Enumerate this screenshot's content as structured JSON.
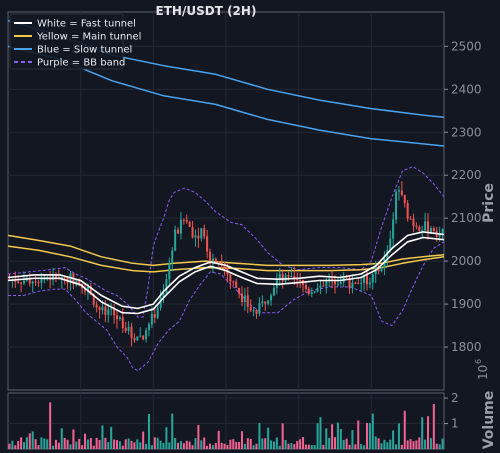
{
  "chart_data": {
    "type": "candlestick",
    "title": "ETH/USDT (2H)",
    "price_axis": {
      "label": "Price",
      "ylim": [
        1700,
        2580
      ],
      "ticks": [
        1800,
        1900,
        2000,
        2100,
        2200,
        2300,
        2400,
        2500
      ],
      "side": "right"
    },
    "volume_axis": {
      "label": "Volume",
      "exponent_label": "10",
      "exponent": "6",
      "ylim": [
        0,
        2.2
      ],
      "ticks": [
        1,
        2
      ],
      "side": "right"
    },
    "x_range": [
      0,
      84
    ],
    "grid": true,
    "legend": {
      "placement": "top-left",
      "entries": [
        {
          "label": "White = Fast tunnel",
          "color": "#ffffff",
          "style": "solid"
        },
        {
          "label": "Yellow = Main tunnel",
          "color": "#f2c94c",
          "style": "solid"
        },
        {
          "label": "Blue = Slow tunnel",
          "color": "#4aa3f0",
          "style": "solid"
        },
        {
          "label": "Purple = BB band",
          "color": "#8a5cf5",
          "style": "dashed"
        }
      ]
    },
    "colors": {
      "up": "#26a69a",
      "down": "#ef5350",
      "volume_up": "#26a69a",
      "volume_down": "#f06292",
      "fast": "#ffffff",
      "main": "#f2c94c",
      "slow": "#4aa3f0",
      "bb": "#8a5cf5"
    },
    "price_anchors": [
      [
        0,
        1958
      ],
      [
        2,
        1958
      ],
      [
        4,
        1955
      ],
      [
        6,
        1960
      ],
      [
        8,
        1962
      ],
      [
        10,
        1965
      ],
      [
        12,
        1962
      ],
      [
        14,
        1950
      ],
      [
        16,
        1928
      ],
      [
        17,
        1895
      ],
      [
        18,
        1885
      ],
      [
        19,
        1872
      ],
      [
        20,
        1878
      ],
      [
        22,
        1860
      ],
      [
        23,
        1840
      ],
      [
        24,
        1822
      ],
      [
        25,
        1830
      ],
      [
        26,
        1820
      ],
      [
        27,
        1850
      ],
      [
        28,
        1870
      ],
      [
        29,
        1900
      ],
      [
        30,
        1920
      ],
      [
        31,
        1990
      ],
      [
        32,
        2060
      ],
      [
        33,
        2075
      ],
      [
        34,
        2100
      ],
      [
        35,
        2080
      ],
      [
        36,
        2060
      ],
      [
        37,
        2070
      ],
      [
        38,
        2050
      ],
      [
        39,
        2000
      ],
      [
        40,
        2010
      ],
      [
        41,
        1995
      ],
      [
        42,
        1980
      ],
      [
        43,
        1950
      ],
      [
        44,
        1940
      ],
      [
        45,
        1920
      ],
      [
        46,
        1900
      ],
      [
        47,
        1885
      ],
      [
        48,
        1880
      ],
      [
        49,
        1900
      ],
      [
        50,
        1920
      ],
      [
        52,
        1960
      ],
      [
        54,
        1955
      ],
      [
        56,
        1950
      ],
      [
        57,
        1940
      ],
      [
        58,
        1930
      ],
      [
        60,
        1945
      ],
      [
        62,
        1955
      ],
      [
        64,
        1960
      ],
      [
        66,
        1950
      ],
      [
        67,
        1955
      ],
      [
        68,
        1952
      ],
      [
        70,
        1960
      ],
      [
        72,
        1990
      ],
      [
        73,
        2010
      ],
      [
        74,
        2090
      ],
      [
        75,
        2180
      ],
      [
        76,
        2140
      ],
      [
        77,
        2110
      ],
      [
        78,
        2090
      ],
      [
        80,
        2080
      ],
      [
        82,
        2075
      ],
      [
        84,
        2060
      ]
    ],
    "fast_tunnel": {
      "upper": [
        [
          0,
          1962
        ],
        [
          5,
          1968
        ],
        [
          10,
          1968
        ],
        [
          14,
          1955
        ],
        [
          18,
          1920
        ],
        [
          22,
          1895
        ],
        [
          25,
          1890
        ],
        [
          28,
          1900
        ],
        [
          30,
          1930
        ],
        [
          33,
          1965
        ],
        [
          36,
          1985
        ],
        [
          39,
          1998
        ],
        [
          42,
          1990
        ],
        [
          45,
          1975
        ],
        [
          48,
          1960
        ],
        [
          52,
          1958
        ],
        [
          56,
          1960
        ],
        [
          60,
          1965
        ],
        [
          64,
          1962
        ],
        [
          68,
          1970
        ],
        [
          71,
          1990
        ],
        [
          74,
          2030
        ],
        [
          77,
          2060
        ],
        [
          80,
          2068
        ],
        [
          84,
          2062
        ]
      ],
      "lower": [
        [
          0,
          1955
        ],
        [
          5,
          1960
        ],
        [
          10,
          1960
        ],
        [
          14,
          1945
        ],
        [
          18,
          1905
        ],
        [
          22,
          1880
        ],
        [
          25,
          1878
        ],
        [
          28,
          1888
        ],
        [
          30,
          1915
        ],
        [
          33,
          1952
        ],
        [
          36,
          1975
        ],
        [
          39,
          1988
        ],
        [
          42,
          1978
        ],
        [
          45,
          1962
        ],
        [
          48,
          1948
        ],
        [
          52,
          1946
        ],
        [
          56,
          1950
        ],
        [
          60,
          1955
        ],
        [
          64,
          1955
        ],
        [
          68,
          1962
        ],
        [
          71,
          1980
        ],
        [
          74,
          2015
        ],
        [
          77,
          2045
        ],
        [
          80,
          2055
        ],
        [
          84,
          2050
        ]
      ]
    },
    "main_tunnel": {
      "upper": [
        [
          0,
          2060
        ],
        [
          6,
          2048
        ],
        [
          12,
          2035
        ],
        [
          18,
          2010
        ],
        [
          24,
          1995
        ],
        [
          28,
          1990
        ],
        [
          32,
          1995
        ],
        [
          38,
          2000
        ],
        [
          44,
          1995
        ],
        [
          50,
          1990
        ],
        [
          56,
          1990
        ],
        [
          62,
          1990
        ],
        [
          68,
          1992
        ],
        [
          72,
          1995
        ],
        [
          76,
          2005
        ],
        [
          80,
          2010
        ],
        [
          84,
          2015
        ]
      ],
      "lower": [
        [
          0,
          2035
        ],
        [
          6,
          2025
        ],
        [
          12,
          2010
        ],
        [
          18,
          1990
        ],
        [
          24,
          1978
        ],
        [
          28,
          1975
        ],
        [
          32,
          1980
        ],
        [
          38,
          1985
        ],
        [
          44,
          1983
        ],
        [
          50,
          1978
        ],
        [
          56,
          1978
        ],
        [
          62,
          1978
        ],
        [
          68,
          1980
        ],
        [
          72,
          1985
        ],
        [
          76,
          1995
        ],
        [
          80,
          2003
        ],
        [
          84,
          2010
        ]
      ]
    },
    "slow_tunnel": {
      "upper": [
        [
          0,
          2560
        ],
        [
          10,
          2525
        ],
        [
          20,
          2480
        ],
        [
          30,
          2455
        ],
        [
          40,
          2435
        ],
        [
          50,
          2400
        ],
        [
          60,
          2375
        ],
        [
          70,
          2355
        ],
        [
          80,
          2340
        ],
        [
          84,
          2335
        ]
      ],
      "lower": [
        [
          0,
          2500
        ],
        [
          10,
          2470
        ],
        [
          20,
          2420
        ],
        [
          30,
          2385
        ],
        [
          40,
          2365
        ],
        [
          50,
          2330
        ],
        [
          60,
          2305
        ],
        [
          70,
          2285
        ],
        [
          80,
          2273
        ],
        [
          84,
          2268
        ]
      ]
    },
    "bb_band": {
      "upper": [
        [
          0,
          1970
        ],
        [
          4,
          1975
        ],
        [
          8,
          1980
        ],
        [
          11,
          1985
        ],
        [
          13,
          1970
        ],
        [
          15,
          1960
        ],
        [
          17,
          1945
        ],
        [
          19,
          1930
        ],
        [
          21,
          1920
        ],
        [
          23,
          1900
        ],
        [
          25,
          1870
        ],
        [
          26,
          1870
        ],
        [
          27,
          1940
        ],
        [
          28,
          2035
        ],
        [
          29,
          2070
        ],
        [
          30,
          2100
        ],
        [
          31,
          2140
        ],
        [
          32,
          2160
        ],
        [
          34,
          2170
        ],
        [
          36,
          2160
        ],
        [
          38,
          2140
        ],
        [
          40,
          2115
        ],
        [
          43,
          2090
        ],
        [
          45,
          2085
        ],
        [
          48,
          2050
        ],
        [
          50,
          2020
        ],
        [
          53,
          1990
        ],
        [
          56,
          1980
        ],
        [
          60,
          1985
        ],
        [
          64,
          1985
        ],
        [
          68,
          1980
        ],
        [
          70,
          2000
        ],
        [
          72,
          2080
        ],
        [
          74,
          2150
        ],
        [
          76,
          2210
        ],
        [
          78,
          2220
        ],
        [
          80,
          2205
        ],
        [
          82,
          2180
        ],
        [
          84,
          2150
        ]
      ],
      "lower": [
        [
          0,
          1920
        ],
        [
          3,
          1920
        ],
        [
          6,
          1930
        ],
        [
          9,
          1935
        ],
        [
          11,
          1935
        ],
        [
          13,
          1910
        ],
        [
          15,
          1880
        ],
        [
          17,
          1860
        ],
        [
          19,
          1840
        ],
        [
          21,
          1800
        ],
        [
          23,
          1775
        ],
        [
          24,
          1752
        ],
        [
          25,
          1745
        ],
        [
          27,
          1765
        ],
        [
          29,
          1810
        ],
        [
          31,
          1840
        ],
        [
          33,
          1860
        ],
        [
          35,
          1910
        ],
        [
          37,
          1945
        ],
        [
          39,
          1975
        ],
        [
          41,
          1970
        ],
        [
          43,
          1945
        ],
        [
          45,
          1920
        ],
        [
          47,
          1895
        ],
        [
          49,
          1880
        ],
        [
          52,
          1880
        ],
        [
          55,
          1910
        ],
        [
          58,
          1930
        ],
        [
          62,
          1940
        ],
        [
          66,
          1940
        ],
        [
          70,
          1920
        ],
        [
          72,
          1860
        ],
        [
          74,
          1850
        ],
        [
          76,
          1885
        ],
        [
          78,
          1940
        ],
        [
          80,
          1990
        ],
        [
          82,
          2030
        ],
        [
          84,
          2045
        ]
      ]
    }
  }
}
